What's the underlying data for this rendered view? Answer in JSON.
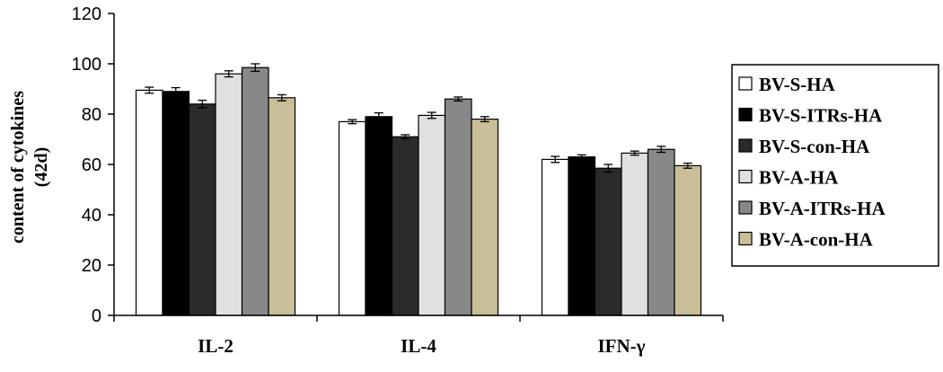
{
  "chart_data": {
    "type": "bar",
    "title": "",
    "xlabel": "",
    "ylabel": "content of cytokines",
    "ylabel_line2": "(42d)",
    "ylim": [
      0,
      120
    ],
    "yticks": [
      0,
      20,
      40,
      60,
      80,
      100,
      120
    ],
    "grid": false,
    "legend_position": "right",
    "categories": [
      "IL-2",
      "IL-4",
      "IFN-γ"
    ],
    "series": [
      {
        "name": "BV-S-HA",
        "color": "#ffffff",
        "values": [
          89.5,
          77.0,
          62.0
        ],
        "errors": [
          1.2,
          0.8,
          1.2
        ]
      },
      {
        "name": "BV-S-ITRs-HA",
        "color": "#000000",
        "values": [
          89.0,
          79.0,
          63.0
        ],
        "errors": [
          1.5,
          1.5,
          0.8
        ]
      },
      {
        "name": "BV-S-con-HA",
        "color": "#2b2b2b",
        "values": [
          84.0,
          71.0,
          58.5
        ],
        "errors": [
          1.5,
          0.8,
          1.5
        ]
      },
      {
        "name": "BV-A-HA",
        "color": "#e0e0e0",
        "values": [
          96.0,
          79.5,
          64.5
        ],
        "errors": [
          1.2,
          1.2,
          0.8
        ]
      },
      {
        "name": "BV-A-ITRs-HA",
        "color": "#888888",
        "values": [
          98.5,
          86.0,
          66.0
        ],
        "errors": [
          1.5,
          0.8,
          1.2
        ]
      },
      {
        "name": "BV-A-con-HA",
        "color": "#c8bf98",
        "values": [
          86.5,
          78.0,
          59.5
        ],
        "errors": [
          1.2,
          1.0,
          1.0
        ]
      }
    ]
  }
}
